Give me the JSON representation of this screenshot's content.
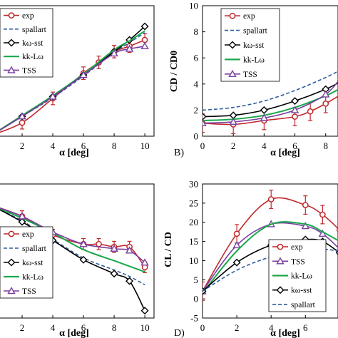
{
  "colors": {
    "exp": "#c0282d",
    "spallart": "#2e5e9e",
    "kw_sst": "#000000",
    "kkLw": "#1aa84a",
    "tss": "#7a3fa0"
  },
  "chart_data": [
    {
      "id": "A",
      "type": "line",
      "panel_label": "",
      "xlabel": "α [deg]",
      "ylabel": "",
      "xlim": [
        0,
        10.6
      ],
      "ylim": [
        0,
        1.45
      ],
      "xticks": [
        "2",
        "4",
        "6",
        "8",
        "10"
      ],
      "yticks": [],
      "grid": false,
      "legend": "top-left",
      "series": [
        {
          "key": "exp",
          "name": "exp",
          "marker": "circle",
          "x": [
            0,
            2,
            4,
            6,
            7,
            8,
            9,
            10
          ],
          "y": [
            0.01,
            0.15,
            0.42,
            0.7,
            0.82,
            0.94,
            1.0,
            1.07
          ],
          "err": 0.07
        },
        {
          "key": "spallart",
          "name": "spallart",
          "dash": true,
          "x": [
            0,
            2,
            4,
            6,
            8,
            9,
            10
          ],
          "y": [
            0.01,
            0.22,
            0.43,
            0.67,
            0.93,
            1.04,
            1.15
          ]
        },
        {
          "key": "kw_sst",
          "name": "kω-sst",
          "marker": "diamond",
          "x": [
            0,
            2,
            4,
            6,
            8,
            9,
            10
          ],
          "y": [
            0.01,
            0.22,
            0.44,
            0.68,
            0.94,
            1.07,
            1.22
          ]
        },
        {
          "key": "kkLw",
          "name": "kk-Lω",
          "x": [
            0,
            2,
            4,
            6,
            8,
            9,
            10
          ],
          "y": [
            0.01,
            0.23,
            0.45,
            0.69,
            0.96,
            1.06,
            1.17
          ]
        },
        {
          "key": "tss",
          "name": "TSS",
          "marker": "triangle",
          "x": [
            0,
            2,
            4,
            6,
            8,
            9,
            10
          ],
          "y": [
            0.01,
            0.22,
            0.44,
            0.68,
            0.92,
            0.97,
            1.0
          ]
        }
      ]
    },
    {
      "id": "B",
      "type": "line",
      "panel_label": "B)",
      "xlabel": "α [deg]",
      "ylabel": "CD / CD0",
      "xlim": [
        0,
        8.8
      ],
      "ylim": [
        0,
        10
      ],
      "xticks": [
        "0",
        "2",
        "4",
        "6",
        "8"
      ],
      "yticks": [
        "0",
        "2",
        "4",
        "6",
        "8",
        "10"
      ],
      "grid": false,
      "legend": "top-left",
      "series": [
        {
          "key": "exp",
          "name": "exp",
          "marker": "circle",
          "x": [
            0,
            2,
            4,
            6,
            7,
            8,
            9
          ],
          "y": [
            1.0,
            0.9,
            1.2,
            1.5,
            1.9,
            2.5,
            3.2
          ],
          "err": 0.7
        },
        {
          "key": "spallart",
          "name": "spallart",
          "dash": true,
          "x": [
            0,
            2,
            4,
            6,
            8,
            9
          ],
          "y": [
            2.0,
            2.2,
            2.7,
            3.5,
            4.5,
            5.1
          ]
        },
        {
          "key": "kw_sst",
          "name": "kω-sst",
          "marker": "diamond",
          "x": [
            0,
            2,
            4,
            6,
            8,
            9
          ],
          "y": [
            1.5,
            1.6,
            2.0,
            2.7,
            3.6,
            4.2
          ]
        },
        {
          "key": "kkLw",
          "name": "kk-Lω",
          "x": [
            0,
            2,
            4,
            6,
            8,
            9
          ],
          "y": [
            1.2,
            1.3,
            1.6,
            2.2,
            3.1,
            3.7
          ]
        },
        {
          "key": "tss",
          "name": "TSS",
          "marker": "triangle",
          "x": [
            0,
            2,
            4,
            6,
            8,
            9
          ],
          "y": [
            1.0,
            1.1,
            1.4,
            2.0,
            3.2,
            4.5
          ]
        }
      ]
    },
    {
      "id": "C",
      "type": "line",
      "panel_label": "",
      "xlabel": "α [deg]",
      "ylabel": "",
      "xlim": [
        0,
        10.6
      ],
      "ylim": [
        0,
        1.45
      ],
      "xticks": [
        "2",
        "4",
        "6",
        "8",
        "10"
      ],
      "yticks": [],
      "grid": false,
      "legend": "bottom-left",
      "series": [
        {
          "key": "exp",
          "name": "exp",
          "marker": "circle",
          "x": [
            0,
            2,
            4,
            6,
            7,
            8,
            9,
            10
          ],
          "y": [
            1.22,
            1.1,
            0.9,
            0.8,
            0.8,
            0.77,
            0.77,
            0.55
          ],
          "err": 0.06
        },
        {
          "key": "spallart",
          "name": "spallart",
          "dash": true,
          "x": [
            0,
            2,
            4,
            6,
            8,
            9,
            10
          ],
          "y": [
            1.22,
            1.05,
            0.85,
            0.65,
            0.52,
            0.45,
            0.36
          ]
        },
        {
          "key": "kw_sst",
          "name": "kω-sst",
          "marker": "diamond",
          "x": [
            0,
            2,
            4,
            6,
            8,
            9,
            10
          ],
          "y": [
            1.22,
            1.04,
            0.84,
            0.63,
            0.48,
            0.4,
            0.08
          ]
        },
        {
          "key": "kkLw",
          "name": "kk-Lω",
          "x": [
            0,
            2,
            4,
            6,
            8,
            9,
            10
          ],
          "y": [
            1.22,
            1.08,
            0.92,
            0.74,
            0.62,
            0.56,
            0.5
          ]
        },
        {
          "key": "tss",
          "name": "TSS",
          "marker": "triangle",
          "x": [
            0,
            2,
            4,
            6,
            8,
            9,
            10
          ],
          "y": [
            1.22,
            1.1,
            0.93,
            0.8,
            0.75,
            0.73,
            0.6
          ]
        }
      ]
    },
    {
      "id": "D",
      "type": "line",
      "panel_label": "D)",
      "xlabel": "α [deg]",
      "ylabel": "CL / CD",
      "xlim": [
        0,
        7.9
      ],
      "ylim": [
        -5,
        30
      ],
      "xticks": [
        "0",
        "2",
        "4",
        "6"
      ],
      "yticks": [
        "-5",
        "0",
        "5",
        "10",
        "15",
        "20",
        "25",
        "30"
      ],
      "grid": false,
      "legend": "bottom-right",
      "series": [
        {
          "key": "exp",
          "name": "exp",
          "marker": "circle",
          "x": [
            0,
            2,
            4,
            6,
            7,
            8
          ],
          "y": [
            2,
            17,
            26,
            24.5,
            22,
            18
          ],
          "err": 2.4
        },
        {
          "key": "tss",
          "name": "TSS",
          "marker": "triangle",
          "x": [
            0,
            2,
            4,
            6,
            7,
            8
          ],
          "y": [
            2,
            14,
            19.5,
            19,
            17,
            13
          ]
        },
        {
          "key": "kkLw",
          "name": "kk-Lω",
          "x": [
            0,
            2,
            4,
            6,
            7,
            8
          ],
          "y": [
            1.5,
            12.5,
            19.5,
            19.5,
            17.5,
            15
          ]
        },
        {
          "key": "kw_sst",
          "name": "kω-sst",
          "marker": "diamond",
          "x": [
            0,
            2,
            4,
            6,
            7,
            8
          ],
          "y": [
            2,
            9.5,
            14,
            15.5,
            15,
            12
          ]
        },
        {
          "key": "spallart",
          "name": "spallart",
          "dash": true,
          "x": [
            0,
            2,
            4,
            6,
            7,
            8
          ],
          "y": [
            2,
            7.5,
            11,
            13,
            13,
            12.5
          ]
        }
      ]
    }
  ]
}
